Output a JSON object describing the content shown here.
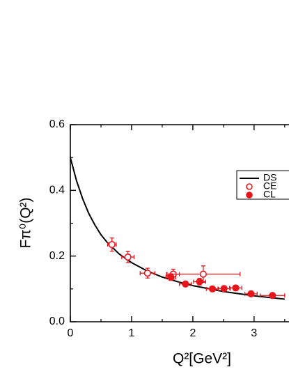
{
  "chart_data": {
    "type": "scatter",
    "x_label": "Q²[GeV²]",
    "y_label": "Fπ⁰(Q²)",
    "xlim": [
      0,
      3.57
    ],
    "ylim": [
      0,
      0.6
    ],
    "xticks": [
      0,
      1,
      2,
      3
    ],
    "yticks": [
      {
        "value": 0,
        "label": "0.0"
      },
      0.2,
      0.4,
      0.6
    ],
    "xticks_minor": [
      0.5,
      1.5,
      2.5,
      3.5
    ],
    "yticks_minor": [
      0.1,
      0.3,
      0.5
    ],
    "series": [
      {
        "name": "DS",
        "type": "line",
        "color": "#000000",
        "x": [
          0,
          0.1,
          0.2,
          0.3,
          0.4,
          0.5,
          0.6,
          0.8,
          1.0,
          1.25,
          1.5,
          1.75,
          2,
          2.5,
          3,
          3.5
        ],
        "values": [
          0.5,
          0.43,
          0.375,
          0.33,
          0.295,
          0.265,
          0.242,
          0.206,
          0.18,
          0.155,
          0.136,
          0.122,
          0.11,
          0.092,
          0.079,
          0.069
        ]
      },
      {
        "name": "CE",
        "type": "open",
        "color": "#e8141c",
        "x": [
          0.68,
          0.94,
          1.26,
          1.68,
          2.17
        ],
        "values": [
          0.235,
          0.197,
          0.148,
          0.145,
          0.145
        ],
        "xerr": [
          0.07,
          0.1,
          0.12,
          0.1,
          0.6
        ],
        "yerr": [
          0.02,
          0.017,
          0.015,
          0.015,
          0.025
        ]
      },
      {
        "name": "CL",
        "type": "filled",
        "color": "#e8141c",
        "x": [
          1.64,
          1.88,
          2.11,
          2.32,
          2.51,
          2.7,
          2.95,
          3.3
        ],
        "values": [
          0.136,
          0.115,
          0.122,
          0.1,
          0.101,
          0.103,
          0.085,
          0.08
        ],
        "xerr": [
          0.08,
          0.1,
          0.1,
          0.1,
          0.1,
          0.1,
          0.1,
          0.2
        ],
        "yerr": [
          0.01,
          0.008,
          0.01,
          0.008,
          0.008,
          0.008,
          0.008,
          0.007
        ]
      }
    ]
  }
}
